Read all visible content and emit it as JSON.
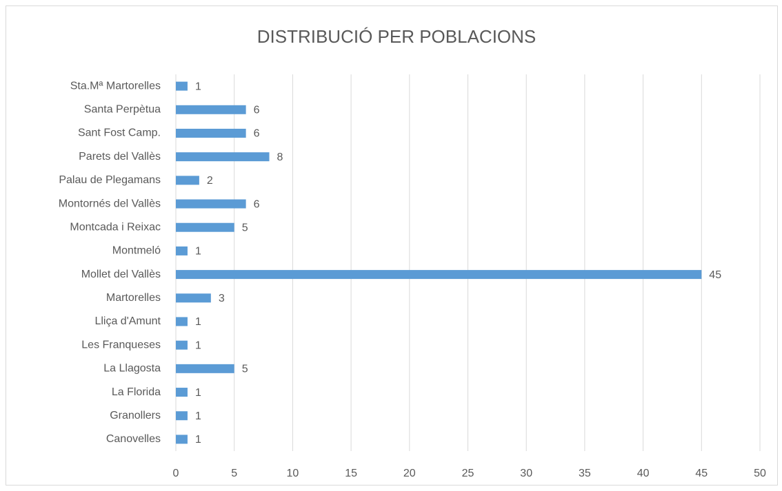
{
  "chart_data": {
    "type": "bar",
    "orientation": "horizontal",
    "title": "DISTRIBUCIÓ PER POBLACIONS",
    "categories": [
      "Canovelles",
      "Granollers",
      "La Florida",
      "La Llagosta",
      "Les Franqueses",
      "Lliça d'Amunt",
      "Martorelles",
      "Mollet del Vallès",
      "Montmeló",
      "Montcada i Reixac",
      "Montornés del Vallès",
      "Palau de Plegamans",
      "Parets del Vallès",
      "Sant Fost Camp.",
      "Santa Perpètua",
      "Sta.Mª Martorelles"
    ],
    "values": [
      1,
      1,
      1,
      5,
      1,
      1,
      3,
      45,
      1,
      5,
      6,
      2,
      8,
      6,
      6,
      1
    ],
    "color": "#5b9bd5",
    "xlim": [
      0,
      50
    ],
    "xticks": [
      0,
      5,
      10,
      15,
      20,
      25,
      30,
      35,
      40,
      45,
      50
    ],
    "grid": true
  }
}
